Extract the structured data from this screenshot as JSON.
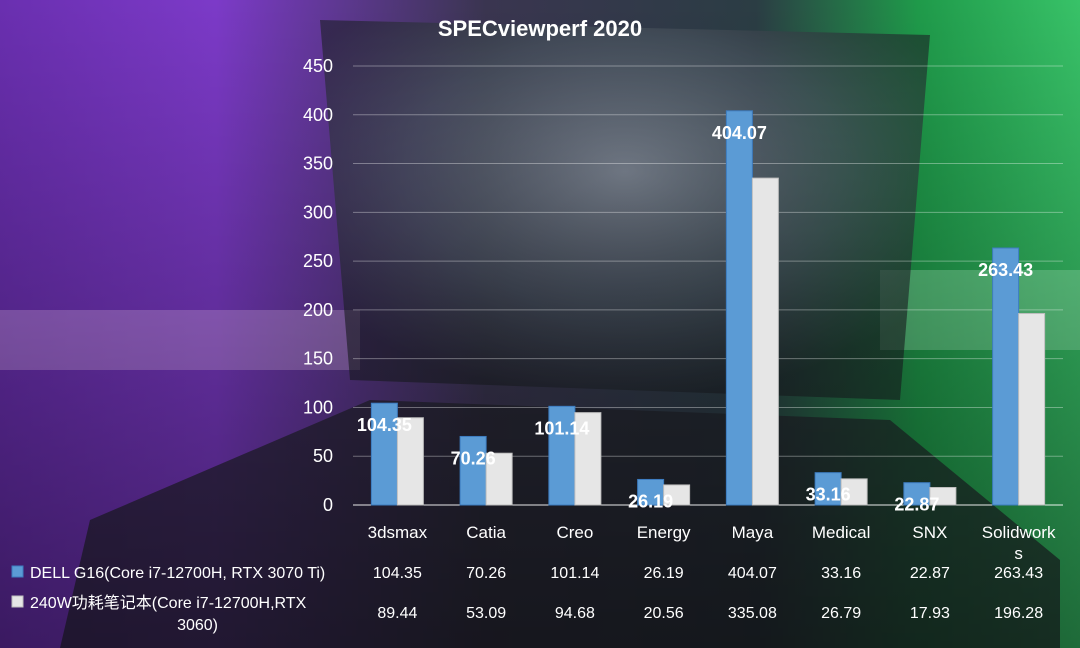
{
  "chart_data": {
    "type": "bar",
    "title": "SPECviewperf 2020",
    "categories": [
      "3dsmax",
      "Catia",
      "Creo",
      "Energy",
      "Maya",
      "Medical",
      "SNX",
      "Solidworks"
    ],
    "category_display": [
      [
        "3dsmax"
      ],
      [
        "Catia"
      ],
      [
        "Creo"
      ],
      [
        "Energy"
      ],
      [
        "Maya"
      ],
      [
        "Medical"
      ],
      [
        "SNX"
      ],
      [
        "Solidwork",
        "s"
      ]
    ],
    "series": [
      {
        "name": "DELL G16(Core i7-12700H, RTX 3070 Ti)",
        "name_lines": [
          "DELL G16(Core i7-12700H, RTX 3070 Ti)"
        ],
        "values": [
          104.35,
          70.26,
          101.14,
          26.19,
          404.07,
          33.16,
          22.87,
          263.43
        ],
        "value_labels": [
          "104.35",
          "70.26",
          "101.14",
          "26.19",
          "404.07",
          "33.16",
          "22.87",
          "263.43"
        ],
        "color": "#5b9bd5"
      },
      {
        "name": "240W功耗笔记本(Core i7-12700H,RTX 3060)",
        "name_lines": [
          "240W功耗笔记本(Core i7-12700H,RTX",
          "3060)"
        ],
        "values": [
          89.44,
          53.09,
          94.68,
          20.56,
          335.08,
          26.79,
          17.93,
          196.28
        ],
        "value_labels": [
          "89.44",
          "53.09",
          "94.68",
          "20.56",
          "335.08",
          "26.79",
          "17.93",
          "196.28"
        ],
        "color": "#e6e6e6"
      }
    ],
    "ylim": [
      0,
      450
    ],
    "yticks": [
      0,
      50,
      100,
      150,
      200,
      250,
      300,
      350,
      400,
      450
    ],
    "grid": true,
    "data_table": true,
    "data_labels_series": 0
  }
}
